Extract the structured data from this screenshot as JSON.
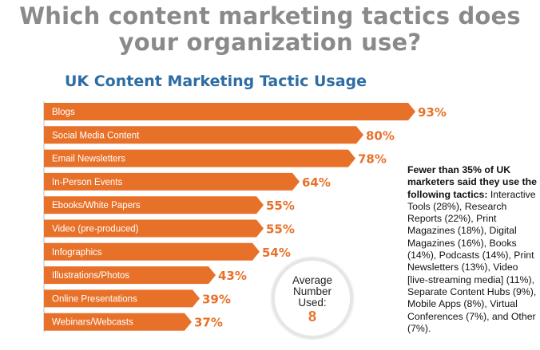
{
  "header": {
    "headline_line1": "Which content marketing tactics does",
    "headline_line2": "your organization use?"
  },
  "colors": {
    "bar": "#e8712a",
    "value_label": "#e8712a",
    "headline": "#8a8a8a",
    "subtitle": "#2e6da4",
    "bar_text": "#ffffff"
  },
  "chart_data": {
    "type": "bar",
    "orientation": "horizontal",
    "title": "UK Content Marketing Tactic Usage",
    "categories": [
      "Blogs",
      "Social Media Content",
      "Email Newsletters",
      "In-Person Events",
      "Ebooks/White Papers",
      "Video (pre-produced)",
      "Infographics",
      "Illustrations/Photos",
      "Online Presentations",
      "Webinars/Webcasts"
    ],
    "values": [
      93,
      80,
      78,
      64,
      55,
      55,
      54,
      43,
      39,
      37
    ],
    "value_labels": [
      "93%",
      "80%",
      "78%",
      "64%",
      "55%",
      "55%",
      "54%",
      "43%",
      "39%",
      "37%"
    ],
    "xlim": [
      0,
      100
    ],
    "grid": false,
    "legend": "none"
  },
  "average": {
    "label": "Average Number Used:",
    "value": "8"
  },
  "note": {
    "bold": "Fewer than 35% of UK marketers said they use the following tactics:",
    "text": " Interactive Tools (28%), Research Reports (22%), Print Magazines (18%), Digital Magazines (16%), Books (14%), Podcasts (14%), Print Newsletters (13%), Video [live-streaming media] (11%), Separate Content Hubs (9%), Mobile Apps (8%), Virtual Conferences (7%), and Other (7%)."
  }
}
